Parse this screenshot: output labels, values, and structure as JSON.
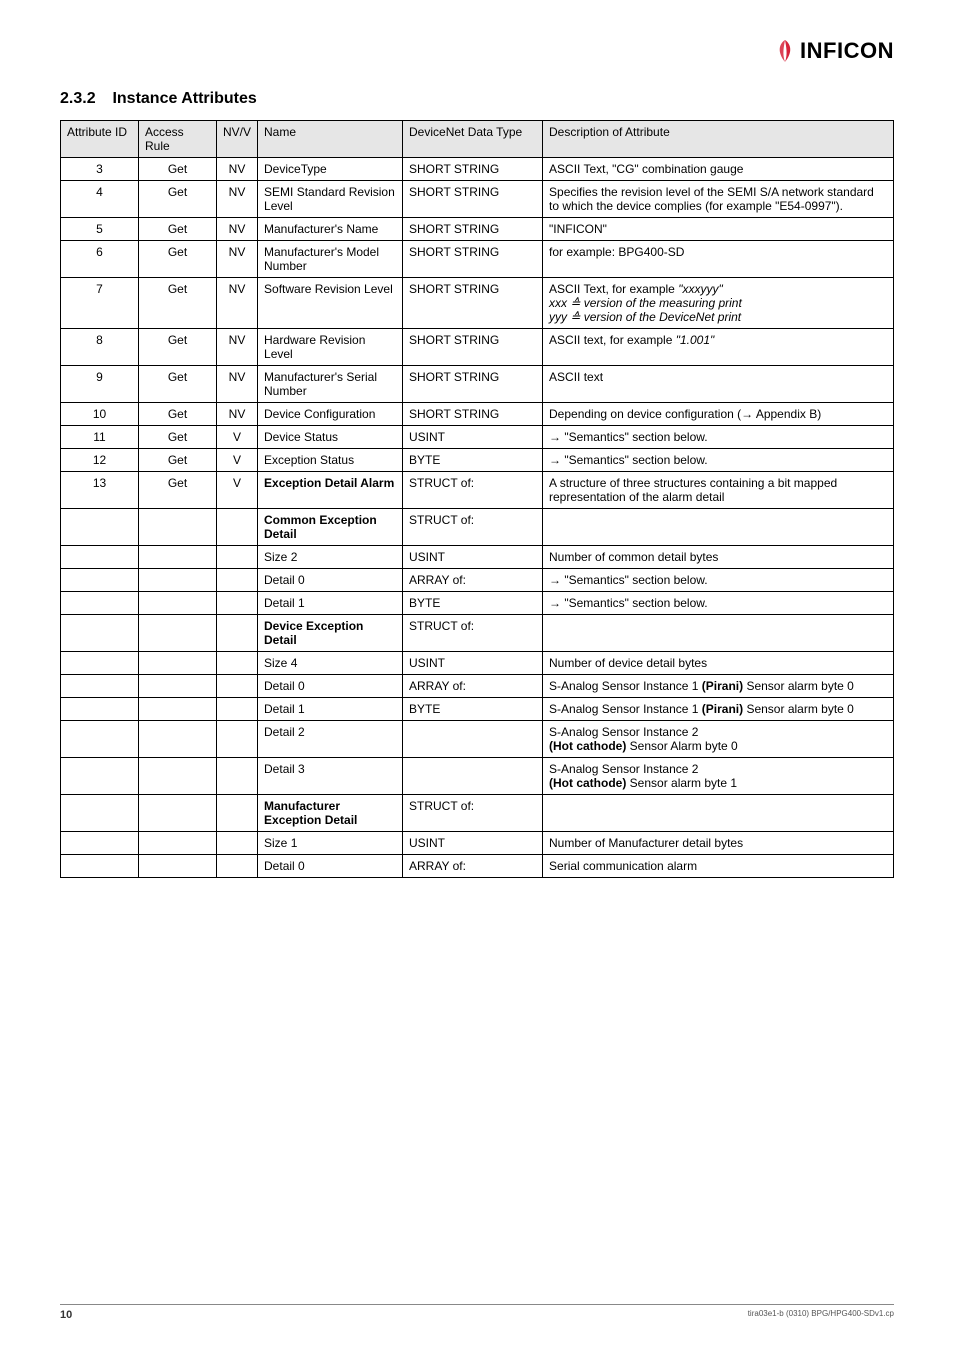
{
  "logo": {
    "text": "INFICON",
    "swoosh_color": "#d6233a"
  },
  "section": {
    "number": "2.3.2",
    "title": "Instance Attributes"
  },
  "table": {
    "headers": {
      "c1": "Attribute ID",
      "c2": "Access Rule",
      "c3": "NV/V",
      "c4": "Name",
      "c5": "DeviceNet Data Type",
      "c6": "Description of Attribute"
    },
    "rows": [
      {
        "id": "3",
        "acc": "Get",
        "nv": "NV",
        "name": "DeviceType",
        "dtype": "SHORT STRING",
        "desc": "ASCII Text, \"CG\" combination gauge"
      },
      {
        "id": "4",
        "acc": "Get",
        "nv": "NV",
        "name": "SEMI Standard Revision Level",
        "dtype": "SHORT STRING",
        "desc": "Specifies the revision level of the SEMI S/A network standard to which the device complies (for example \"E54-0997\")."
      },
      {
        "id": "5",
        "acc": "Get",
        "nv": "NV",
        "name": "Manufacturer's Name",
        "dtype": "SHORT STRING",
        "desc": "\"INFICON\""
      },
      {
        "id": "6",
        "acc": "Get",
        "nv": "NV",
        "name": "Manufacturer's Model Number",
        "dtype": "SHORT STRING",
        "desc": "for example: BPG400-SD"
      },
      {
        "id": "7",
        "acc": "Get",
        "nv": "NV",
        "name": "Software Revision Level",
        "dtype": "SHORT STRING",
        "desc_html": "ASCII Text, for example <i>\"xxxyyy\"</i><br><i>xxx ≙ version of the measuring print</i><br><i>yyy ≙ version of the DeviceNet print</i>"
      },
      {
        "id": "8",
        "acc": "Get",
        "nv": "NV",
        "name": "Hardware Revision Level",
        "dtype": "SHORT STRING",
        "desc_html": "ASCII text, for example <i>\"1.001\"</i>"
      },
      {
        "id": "9",
        "acc": "Get",
        "nv": "NV",
        "name": "Manufacturer's Serial Number",
        "dtype": "SHORT STRING",
        "desc": "ASCII text"
      },
      {
        "id": "10",
        "acc": "Get",
        "nv": "NV",
        "name": "Device Configuration",
        "dtype": "SHORT STRING",
        "desc": "Depending on device configuration (→ Appendix B)"
      },
      {
        "id": "11",
        "acc": "Get",
        "nv": "V",
        "name": "Device Status",
        "dtype": "USINT",
        "desc": "→ \"Semantics\" section below."
      },
      {
        "id": "12",
        "acc": "Get",
        "nv": "V",
        "name": "Exception Status",
        "dtype": "BYTE",
        "desc": "→ \"Semantics\" section below."
      },
      {
        "id": "13",
        "acc": "Get",
        "nv": "V",
        "name_bold": true,
        "name": "Exception Detail Alarm",
        "dtype": "STRUCT of:",
        "desc": "A structure of three structures containing a bit mapped representation of the alarm detail"
      },
      {
        "name_bold": true,
        "name": "Common Exception Detail",
        "dtype": "STRUCT of:"
      },
      {
        "name": "Size 2",
        "dtype": "USINT",
        "desc": "Number of common detail bytes"
      },
      {
        "name": "Detail 0",
        "dtype": "ARRAY of:",
        "desc": "→ \"Semantics\" section below."
      },
      {
        "name": "Detail 1",
        "dtype": "BYTE",
        "desc": "→ \"Semantics\" section below."
      },
      {
        "name_bold": true,
        "name": "Device Exception Detail",
        "dtype": "STRUCT of:"
      },
      {
        "name": "Size 4",
        "dtype": "USINT",
        "desc": "Number of device detail bytes"
      },
      {
        "name": "Detail 0",
        "dtype": "ARRAY of:",
        "desc_html": "S-Analog Sensor Instance 1 <b>(Pirani)</b> Sensor alarm byte 0"
      },
      {
        "name": "Detail 1",
        "dtype": "BYTE",
        "desc_html": "S-Analog Sensor Instance 1 <b>(Pirani)</b> Sensor alarm byte 0"
      },
      {
        "name": "Detail 2",
        "desc_html": "S-Analog Sensor Instance 2<br><b>(Hot cathode)</b> Sensor Alarm byte 0"
      },
      {
        "name": "Detail 3",
        "desc_html": "S-Analog Sensor Instance 2<br><b>(Hot cathode)</b> Sensor alarm byte 1"
      },
      {
        "name_bold": true,
        "name": "Manufacturer Exception Detail",
        "dtype": "STRUCT of:"
      },
      {
        "name": "Size 1",
        "dtype": "USINT",
        "desc": "Number of Manufacturer detail bytes"
      },
      {
        "name": "Detail 0",
        "dtype": "ARRAY of:",
        "desc": "Serial communication alarm"
      }
    ]
  },
  "footer": {
    "page": "10",
    "right": "tira03e1-b  (0310)  BPG/HPG400-SDv1.cp"
  }
}
